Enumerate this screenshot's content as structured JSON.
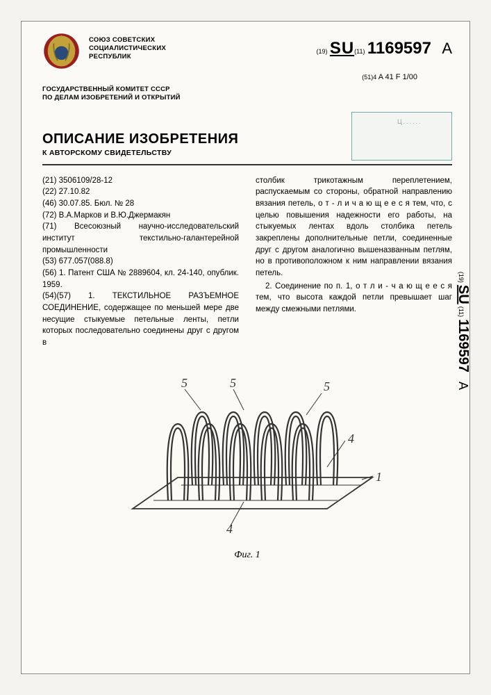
{
  "header": {
    "union_lines": [
      "СОЮЗ СОВЕТСКИХ",
      "СОЦИАЛИСТИЧЕСКИХ",
      "РЕСПУБЛИК"
    ],
    "country_code_prefix": "(19)",
    "country_code": "SU",
    "country_code_suffix": "(11)",
    "pub_number": "1169597",
    "kind_code": "A",
    "ipc_prefix": "(51)4",
    "ipc": "A 41 F 1/00",
    "committee_lines": [
      "ГОСУДАРСТВЕННЫЙ КОМИТЕТ СССР",
      "ПО ДЕЛАМ ИЗОБРЕТЕНИЙ И ОТКРЫТИЙ"
    ],
    "title": "ОПИСАНИЕ ИЗОБРЕТЕНИЯ",
    "subtitle": "К АВТОРСКОМУ СВИДЕТЕЛЬСТВУ"
  },
  "left_col": {
    "l21": "(21) 3506109/28-12",
    "l22": "(22) 27.10.82",
    "l46": "(46) 30.07.85. Бюл. № 28",
    "l72": "(72) В.А.Марков и В.Ю.Джермакян",
    "l71": "(71) Всесоюзный научно-исследовательский институт текстильно-галантерейной промышленности",
    "l53": "(53) 677.057(088.8)",
    "l56": "(56) 1. Патент США № 2889604, кл. 24-140, опублик. 1959.",
    "l54_title": "(54)(57) 1. ТЕКСТИЛЬНОЕ РАЗЪЕМНОЕ СОЕДИНЕНИЕ,",
    "l54_body": " содержащее по меньшей мере две несущие стыкуемые петельные ленты, петли которых последовательно соединены друг с другом в"
  },
  "right_col": {
    "p1a": "столбик трикотажным переплетением, распускаемым со стороны, обратной направлению вязания петель, ",
    "p1_spaced": "о т - л и ч а ю щ е е с я",
    "p1b": " тем, что, с целью повышения надежности его работы, на стыкуемых лентах вдоль столбика петель закреплены дополнительные петли, соединенные друг с другом аналогично вышеназванным петлям, но в противоположном к ним направлении вязания петель.",
    "p2a": "2. Соединение по п. 1, ",
    "p2_spaced": "о т л и - ч а ю щ е е с я",
    "p2b": " тем, что высота каждой петли превышает шаг между смежными петлями."
  },
  "figure": {
    "caption": "Фиг. 1",
    "labels": [
      "5",
      "5",
      "5",
      "4",
      "1",
      "4"
    ],
    "colors": {
      "stroke": "#333333",
      "background": "#fbfaf6"
    },
    "loop_count_front": 5,
    "loop_count_back": 5
  },
  "emblem": {
    "outer_color": "#9a1f1f",
    "inner_color": "#c4a23a",
    "globe_color": "#2a4a7a"
  }
}
